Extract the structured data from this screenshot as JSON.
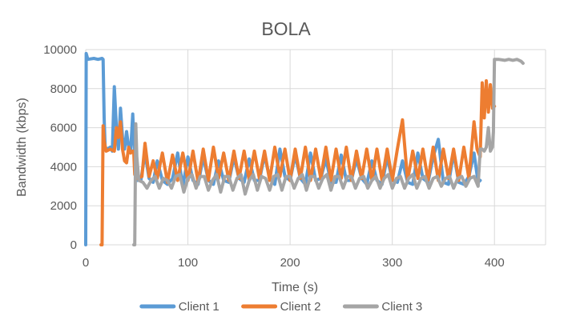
{
  "chart_data": {
    "type": "line",
    "title": "BOLA",
    "xlabel": "Time (s)",
    "ylabel": "Bandwidth (kbps)",
    "xlim": [
      0,
      450
    ],
    "ylim": [
      0,
      10000
    ],
    "x_ticks": [
      0,
      100,
      200,
      300,
      400
    ],
    "y_ticks": [
      0,
      2000,
      4000,
      6000,
      8000,
      10000
    ],
    "grid": true,
    "legend_position": "bottom",
    "series": [
      {
        "name": "Client 1",
        "color": "#5b9bd5",
        "points": [
          [
            0,
            0
          ],
          [
            0.5,
            9800
          ],
          [
            2,
            9500
          ],
          [
            8,
            9550
          ],
          [
            12,
            9500
          ],
          [
            16,
            9550
          ],
          [
            17,
            9500
          ],
          [
            18,
            6500
          ],
          [
            19,
            5000
          ],
          [
            21,
            4900
          ],
          [
            24,
            5000
          ],
          [
            26,
            4800
          ],
          [
            28,
            8100
          ],
          [
            30,
            6000
          ],
          [
            32,
            4900
          ],
          [
            34,
            7000
          ],
          [
            36,
            5500
          ],
          [
            38,
            4900
          ],
          [
            40,
            5800
          ],
          [
            42,
            5000
          ],
          [
            44,
            4800
          ],
          [
            46,
            6700
          ],
          [
            47,
            5500
          ],
          [
            48,
            4700
          ],
          [
            50,
            3300
          ],
          [
            54,
            3300
          ],
          [
            58,
            4700
          ],
          [
            62,
            3400
          ],
          [
            66,
            3200
          ],
          [
            70,
            4300
          ],
          [
            75,
            3300
          ],
          [
            80,
            3100
          ],
          [
            85,
            3400
          ],
          [
            90,
            4700
          ],
          [
            95,
            3000
          ],
          [
            100,
            4500
          ],
          [
            105,
            3300
          ],
          [
            110,
            3100
          ],
          [
            115,
            4500
          ],
          [
            120,
            3300
          ],
          [
            125,
            3100
          ],
          [
            130,
            4300
          ],
          [
            135,
            3300
          ],
          [
            140,
            3200
          ],
          [
            145,
            4500
          ],
          [
            150,
            3400
          ],
          [
            155,
            3200
          ],
          [
            160,
            4400
          ],
          [
            165,
            3300
          ],
          [
            170,
            3300
          ],
          [
            175,
            4600
          ],
          [
            180,
            3400
          ],
          [
            185,
            3100
          ],
          [
            190,
            4900
          ],
          [
            195,
            3500
          ],
          [
            200,
            3300
          ],
          [
            205,
            4600
          ],
          [
            210,
            3400
          ],
          [
            215,
            3100
          ],
          [
            220,
            4700
          ],
          [
            225,
            3300
          ],
          [
            230,
            3400
          ],
          [
            235,
            4400
          ],
          [
            240,
            3200
          ],
          [
            245,
            3200
          ],
          [
            250,
            4600
          ],
          [
            255,
            3300
          ],
          [
            260,
            3300
          ],
          [
            265,
            4400
          ],
          [
            270,
            3400
          ],
          [
            275,
            3100
          ],
          [
            280,
            4300
          ],
          [
            285,
            3300
          ],
          [
            290,
            3100
          ],
          [
            295,
            4500
          ],
          [
            300,
            3300
          ],
          [
            305,
            3200
          ],
          [
            310,
            4300
          ],
          [
            315,
            3200
          ],
          [
            320,
            3100
          ],
          [
            325,
            4700
          ],
          [
            330,
            3400
          ],
          [
            335,
            3200
          ],
          [
            340,
            4500
          ],
          [
            345,
            5400
          ],
          [
            350,
            3200
          ],
          [
            355,
            3100
          ],
          [
            360,
            4700
          ],
          [
            365,
            3200
          ],
          [
            370,
            3100
          ],
          [
            375,
            3500
          ],
          [
            380,
            4700
          ],
          [
            384,
            3200
          ],
          [
            386,
            3300
          ]
        ]
      },
      {
        "name": "Client 2",
        "color": "#ed7d31",
        "points": [
          [
            15,
            0
          ],
          [
            16,
            0
          ],
          [
            17,
            6100
          ],
          [
            18,
            5300
          ],
          [
            20,
            4800
          ],
          [
            24,
            4900
          ],
          [
            28,
            4800
          ],
          [
            30,
            6000
          ],
          [
            32,
            5500
          ],
          [
            34,
            6300
          ],
          [
            36,
            4900
          ],
          [
            38,
            4300
          ],
          [
            40,
            4200
          ],
          [
            42,
            5000
          ],
          [
            44,
            4700
          ],
          [
            46,
            4800
          ],
          [
            47,
            4700
          ],
          [
            48,
            3600
          ],
          [
            50,
            3400
          ],
          [
            55,
            3500
          ],
          [
            58,
            5200
          ],
          [
            62,
            3500
          ],
          [
            66,
            4300
          ],
          [
            70,
            3400
          ],
          [
            75,
            4700
          ],
          [
            80,
            3200
          ],
          [
            85,
            4600
          ],
          [
            90,
            3300
          ],
          [
            95,
            4700
          ],
          [
            100,
            3300
          ],
          [
            105,
            4800
          ],
          [
            110,
            3200
          ],
          [
            115,
            4900
          ],
          [
            120,
            3300
          ],
          [
            125,
            5000
          ],
          [
            130,
            3400
          ],
          [
            135,
            4700
          ],
          [
            140,
            3300
          ],
          [
            145,
            4800
          ],
          [
            150,
            3400
          ],
          [
            155,
            4800
          ],
          [
            160,
            3300
          ],
          [
            165,
            4800
          ],
          [
            170,
            3400
          ],
          [
            175,
            4800
          ],
          [
            180,
            3300
          ],
          [
            185,
            5000
          ],
          [
            190,
            3500
          ],
          [
            195,
            4900
          ],
          [
            200,
            3300
          ],
          [
            205,
            4900
          ],
          [
            210,
            3400
          ],
          [
            215,
            5000
          ],
          [
            220,
            3300
          ],
          [
            225,
            4900
          ],
          [
            230,
            3400
          ],
          [
            235,
            5000
          ],
          [
            240,
            3300
          ],
          [
            245,
            4900
          ],
          [
            250,
            3400
          ],
          [
            255,
            5000
          ],
          [
            260,
            3300
          ],
          [
            265,
            4800
          ],
          [
            270,
            3400
          ],
          [
            275,
            4900
          ],
          [
            280,
            3300
          ],
          [
            285,
            4900
          ],
          [
            290,
            3300
          ],
          [
            295,
            4900
          ],
          [
            300,
            3300
          ],
          [
            305,
            4900
          ],
          [
            310,
            6400
          ],
          [
            315,
            3300
          ],
          [
            320,
            4800
          ],
          [
            325,
            3400
          ],
          [
            330,
            4900
          ],
          [
            335,
            3300
          ],
          [
            340,
            5000
          ],
          [
            345,
            3300
          ],
          [
            350,
            4900
          ],
          [
            355,
            3400
          ],
          [
            360,
            4900
          ],
          [
            365,
            3300
          ],
          [
            370,
            5000
          ],
          [
            375,
            3400
          ],
          [
            380,
            6300
          ],
          [
            383,
            4900
          ],
          [
            386,
            4500
          ],
          [
            388,
            8300
          ],
          [
            390,
            6500
          ],
          [
            392,
            8400
          ],
          [
            394,
            6800
          ],
          [
            396,
            8200
          ],
          [
            398,
            7000
          ],
          [
            400,
            7100
          ]
        ]
      },
      {
        "name": "Client 3",
        "color": "#a5a5a5",
        "points": [
          [
            47,
            0
          ],
          [
            48,
            0
          ],
          [
            49,
            6200
          ],
          [
            50,
            4500
          ],
          [
            52,
            3300
          ],
          [
            56,
            3200
          ],
          [
            60,
            2900
          ],
          [
            64,
            3300
          ],
          [
            68,
            3500
          ],
          [
            72,
            2900
          ],
          [
            76,
            3400
          ],
          [
            80,
            3300
          ],
          [
            84,
            2900
          ],
          [
            88,
            3500
          ],
          [
            92,
            3600
          ],
          [
            96,
            2700
          ],
          [
            100,
            3400
          ],
          [
            104,
            3600
          ],
          [
            108,
            2900
          ],
          [
            112,
            3500
          ],
          [
            116,
            3500
          ],
          [
            120,
            2800
          ],
          [
            124,
            3300
          ],
          [
            128,
            3600
          ],
          [
            132,
            2700
          ],
          [
            136,
            3500
          ],
          [
            140,
            3500
          ],
          [
            144,
            2800
          ],
          [
            148,
            3400
          ],
          [
            152,
            3600
          ],
          [
            156,
            2600
          ],
          [
            160,
            3300
          ],
          [
            164,
            3600
          ],
          [
            168,
            2800
          ],
          [
            172,
            3500
          ],
          [
            176,
            3400
          ],
          [
            180,
            2800
          ],
          [
            184,
            3500
          ],
          [
            188,
            3600
          ],
          [
            192,
            2800
          ],
          [
            196,
            3500
          ],
          [
            200,
            3500
          ],
          [
            204,
            2900
          ],
          [
            208,
            3400
          ],
          [
            212,
            3600
          ],
          [
            216,
            2800
          ],
          [
            220,
            3500
          ],
          [
            224,
            3500
          ],
          [
            228,
            2900
          ],
          [
            232,
            3400
          ],
          [
            236,
            3600
          ],
          [
            240,
            2800
          ],
          [
            244,
            3500
          ],
          [
            248,
            3500
          ],
          [
            252,
            2900
          ],
          [
            256,
            3500
          ],
          [
            260,
            3500
          ],
          [
            264,
            2900
          ],
          [
            268,
            3400
          ],
          [
            272,
            3500
          ],
          [
            276,
            2900
          ],
          [
            280,
            3300
          ],
          [
            284,
            3500
          ],
          [
            288,
            2900
          ],
          [
            292,
            3400
          ],
          [
            296,
            3600
          ],
          [
            300,
            2900
          ],
          [
            304,
            3400
          ],
          [
            308,
            3500
          ],
          [
            312,
            2900
          ],
          [
            316,
            3400
          ],
          [
            320,
            3600
          ],
          [
            324,
            2900
          ],
          [
            328,
            3400
          ],
          [
            332,
            3500
          ],
          [
            336,
            2900
          ],
          [
            340,
            3400
          ],
          [
            344,
            3500
          ],
          [
            348,
            3000
          ],
          [
            352,
            3400
          ],
          [
            356,
            3500
          ],
          [
            360,
            2900
          ],
          [
            364,
            3400
          ],
          [
            368,
            3500
          ],
          [
            372,
            3000
          ],
          [
            376,
            3400
          ],
          [
            380,
            3500
          ],
          [
            384,
            3000
          ],
          [
            386,
            4900
          ],
          [
            388,
            4900
          ],
          [
            390,
            4800
          ],
          [
            392,
            5000
          ],
          [
            394,
            6000
          ],
          [
            396,
            4800
          ],
          [
            398,
            5000
          ],
          [
            399,
            5800
          ],
          [
            400,
            9500
          ],
          [
            404,
            9500
          ],
          [
            410,
            9450
          ],
          [
            414,
            9500
          ],
          [
            418,
            9450
          ],
          [
            422,
            9500
          ],
          [
            426,
            9400
          ],
          [
            428,
            9300
          ]
        ]
      }
    ]
  }
}
